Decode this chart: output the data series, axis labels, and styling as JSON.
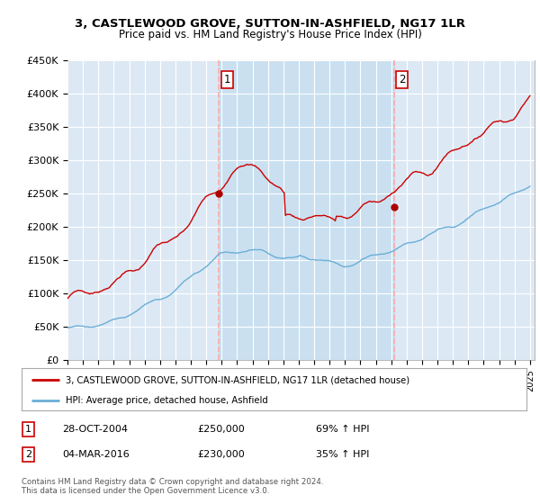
{
  "title": "3, CASTLEWOOD GROVE, SUTTON-IN-ASHFIELD, NG17 1LR",
  "subtitle": "Price paid vs. HM Land Registry's House Price Index (HPI)",
  "ylabel_ticks": [
    "£0",
    "£50K",
    "£100K",
    "£150K",
    "£200K",
    "£250K",
    "£300K",
    "£350K",
    "£400K",
    "£450K"
  ],
  "ytick_values": [
    0,
    50000,
    100000,
    150000,
    200000,
    250000,
    300000,
    350000,
    400000,
    450000
  ],
  "ylim": [
    0,
    450000
  ],
  "sale1": {
    "price": 250000,
    "label": "1",
    "year": 2004.83
  },
  "sale2": {
    "price": 230000,
    "label": "2",
    "year": 2016.17
  },
  "legend_entries": [
    "3, CASTLEWOOD GROVE, SUTTON-IN-ASHFIELD, NG17 1LR (detached house)",
    "HPI: Average price, detached house, Ashfield"
  ],
  "table_rows": [
    {
      "num": "1",
      "date": "28-OCT-2004",
      "price": "£250,000",
      "hpi": "69% ↑ HPI"
    },
    {
      "num": "2",
      "date": "04-MAR-2016",
      "price": "£230,000",
      "hpi": "35% ↑ HPI"
    }
  ],
  "footnote": "Contains HM Land Registry data © Crown copyright and database right 2024.\nThis data is licensed under the Open Government Licence v3.0.",
  "hpi_color": "#6aaed6",
  "price_color": "#cc0000",
  "sale_dot_color": "#aa0000",
  "vline_color": "#ffaaaa",
  "bg_color": "#dce9f5",
  "shade_color": "#c8dff0",
  "grid_color": "#ffffff",
  "xstart": 1995,
  "xend": 2025
}
